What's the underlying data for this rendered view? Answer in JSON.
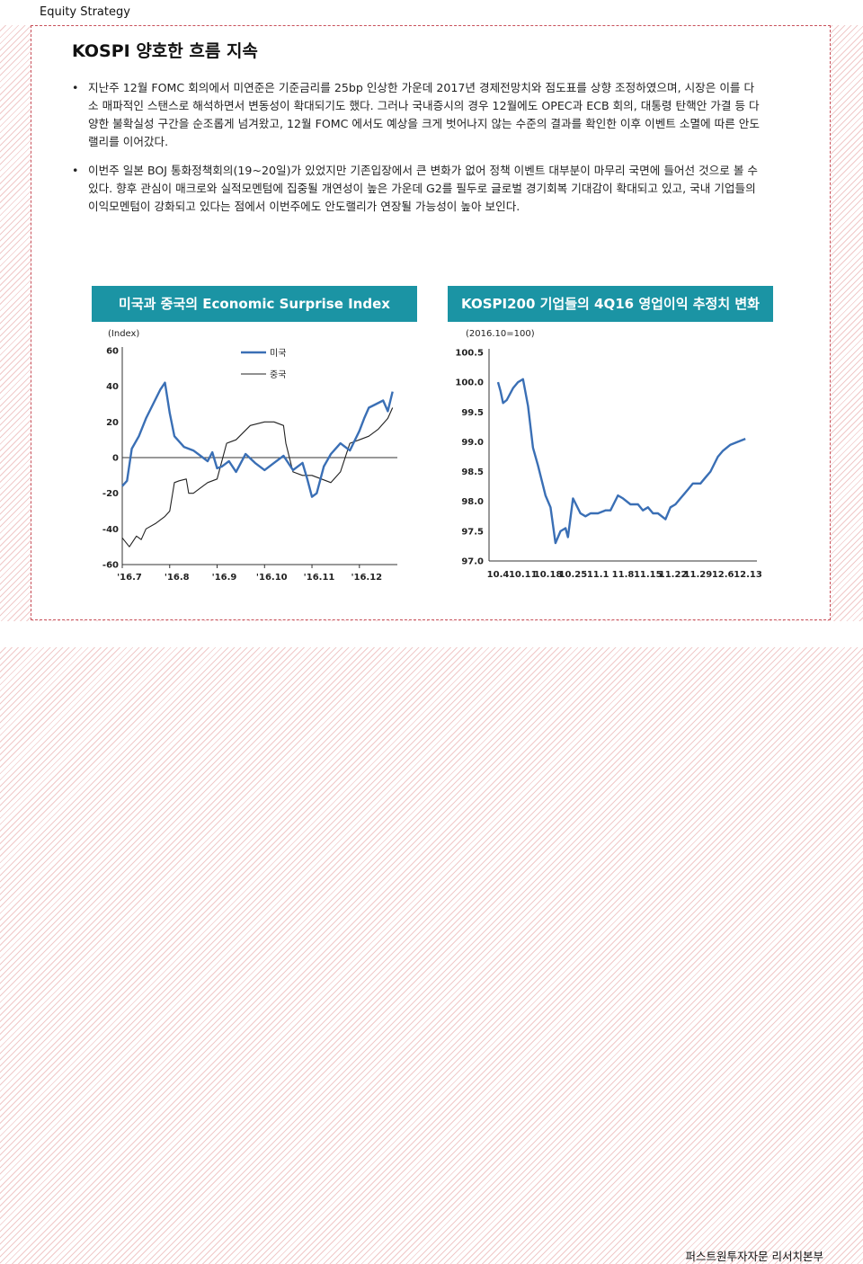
{
  "header": {
    "section": "Equity Strategy"
  },
  "title": "KOSPI 양호한 흐름 지속",
  "bullets": [
    "지난주 12월 FOMC 회의에서 미연준은 기준금리를 25bp 인상한 가운데 2017년 경제전망치와 점도표를 상향 조정하였으며, 시장은 이를 다소 매파적인 스탠스로 해석하면서 변동성이 확대되기도 했다. 그러나 국내증시의 경우 12월에도 OPEC과 ECB 회의, 대통령 탄핵안 가결 등 다양한 불확실성 구간을 순조롭게 넘겨왔고, 12월 FOMC 에서도 예상을 크게 벗어나지 않는 수준의 결과를 확인한 이후 이벤트 소멸에 따른 안도랠리를 이어갔다.",
    "이번주 일본 BOJ 통화정책회의(19~20일)가 있었지만 기존입장에서 큰 변화가 없어 정책 이벤트 대부분이 마무리 국면에 들어선 것으로 볼 수 있다. 향후 관심이 매크로와 실적모멘텀에 집중될 개연성이 높은 가운데 G2를 필두로 글로벌 경기회복 기대감이 확대되고 있고, 국내 기업들의 이익모멘텀이 강화되고 있다는 점에서 이번주에도 안도랠리가 연장될 가능성이 높아 보인다."
  ],
  "footer": "퍼스트원투자자문 리서치본부",
  "colors": {
    "accent": "#1b94a4",
    "us_series": "#3a6fb5",
    "cn_series": "#222222",
    "line": "#3a6fb5"
  },
  "chart_data": [
    {
      "type": "line",
      "title": "미국과 중국의 Economic Surprise Index",
      "ylabel": "(Index)",
      "ylim": [
        -60,
        60
      ],
      "yticks": [
        60,
        40,
        20,
        0,
        -20,
        -40,
        -60
      ],
      "xtick_labels": [
        "'16.7",
        "'16.8",
        "'16.9",
        "'16.10",
        "'16.11",
        "'16.12"
      ],
      "xlim": [
        0,
        5.8
      ],
      "legend": {
        "position": "top-center"
      },
      "series": [
        {
          "name": "미국",
          "color": "#3a6fb5",
          "x": [
            0,
            0.1,
            0.2,
            0.35,
            0.5,
            0.65,
            0.8,
            0.9,
            1.0,
            1.1,
            1.3,
            1.5,
            1.7,
            1.8,
            1.9,
            2.0,
            2.1,
            2.25,
            2.4,
            2.6,
            2.8,
            3.0,
            3.2,
            3.4,
            3.6,
            3.8,
            3.9,
            4.0,
            4.1,
            4.25,
            4.4,
            4.6,
            4.8,
            5.0,
            5.1,
            5.2,
            5.35,
            5.5,
            5.6,
            5.7
          ],
          "values": [
            -16,
            -13,
            5,
            12,
            22,
            30,
            38,
            42,
            25,
            12,
            6,
            4,
            0,
            -2,
            3,
            -6,
            -5,
            -2,
            -8,
            2,
            -3,
            -7,
            -3,
            1,
            -7,
            -3,
            -12,
            -22,
            -20,
            -5,
            2,
            8,
            4,
            15,
            22,
            28,
            30,
            32,
            26,
            37
          ]
        },
        {
          "name": "중국",
          "color": "#222222",
          "x": [
            0,
            0.15,
            0.3,
            0.4,
            0.5,
            0.7,
            0.9,
            1.0,
            1.1,
            1.2,
            1.35,
            1.4,
            1.5,
            1.6,
            1.8,
            2.0,
            2.2,
            2.4,
            2.7,
            3.0,
            3.2,
            3.4,
            3.45,
            3.6,
            3.8,
            4.0,
            4.2,
            4.4,
            4.6,
            4.8,
            5.0,
            5.2,
            5.4,
            5.6,
            5.7
          ],
          "values": [
            -45,
            -50,
            -44,
            -46,
            -40,
            -37,
            -33,
            -30,
            -14,
            -13,
            -12,
            -20,
            -20,
            -18,
            -14,
            -12,
            8,
            10,
            18,
            20,
            20,
            18,
            8,
            -8,
            -10,
            -10,
            -12,
            -14,
            -8,
            8,
            10,
            12,
            16,
            22,
            28
          ]
        }
      ]
    },
    {
      "type": "line",
      "title": "KOSPI200 기업들의 4Q16 영업이익 추정치 변화",
      "ylabel": "(2016.10=100)",
      "ylim": [
        97.0,
        100.5
      ],
      "yticks": [
        100.5,
        100.0,
        99.5,
        99.0,
        98.5,
        98.0,
        97.5,
        97.0
      ],
      "categories": [
        "10.4",
        "10.11",
        "10.18",
        "10.25",
        "11.1",
        "11.8",
        "11.15",
        "11.22",
        "11.29",
        "12.6",
        "12.13"
      ],
      "series": [
        {
          "name": "",
          "color": "#3a6fb5",
          "x": [
            0,
            0.1,
            0.2,
            0.35,
            0.6,
            0.8,
            1.0,
            1.2,
            1.4,
            1.6,
            1.9,
            2.1,
            2.3,
            2.5,
            2.7,
            2.8,
            3.0,
            3.3,
            3.5,
            3.7,
            4.0,
            4.3,
            4.5,
            4.8,
            5.0,
            5.3,
            5.6,
            5.8,
            6.0,
            6.2,
            6.4,
            6.7,
            6.9,
            7.1,
            7.3,
            7.6,
            7.8,
            8.1,
            8.3,
            8.5,
            8.8,
            9.0,
            9.3,
            9.6,
            9.9
          ],
          "values": [
            100.0,
            99.85,
            99.65,
            99.7,
            99.9,
            100.0,
            100.05,
            99.6,
            98.9,
            98.6,
            98.1,
            97.9,
            97.3,
            97.5,
            97.55,
            97.4,
            98.05,
            97.8,
            97.75,
            97.8,
            97.8,
            97.85,
            97.85,
            98.1,
            98.05,
            97.95,
            97.95,
            97.85,
            97.9,
            97.8,
            97.8,
            97.7,
            97.9,
            97.95,
            98.05,
            98.2,
            98.3,
            98.3,
            98.4,
            98.5,
            98.75,
            98.85,
            98.95,
            99.0,
            99.05
          ]
        }
      ]
    }
  ]
}
